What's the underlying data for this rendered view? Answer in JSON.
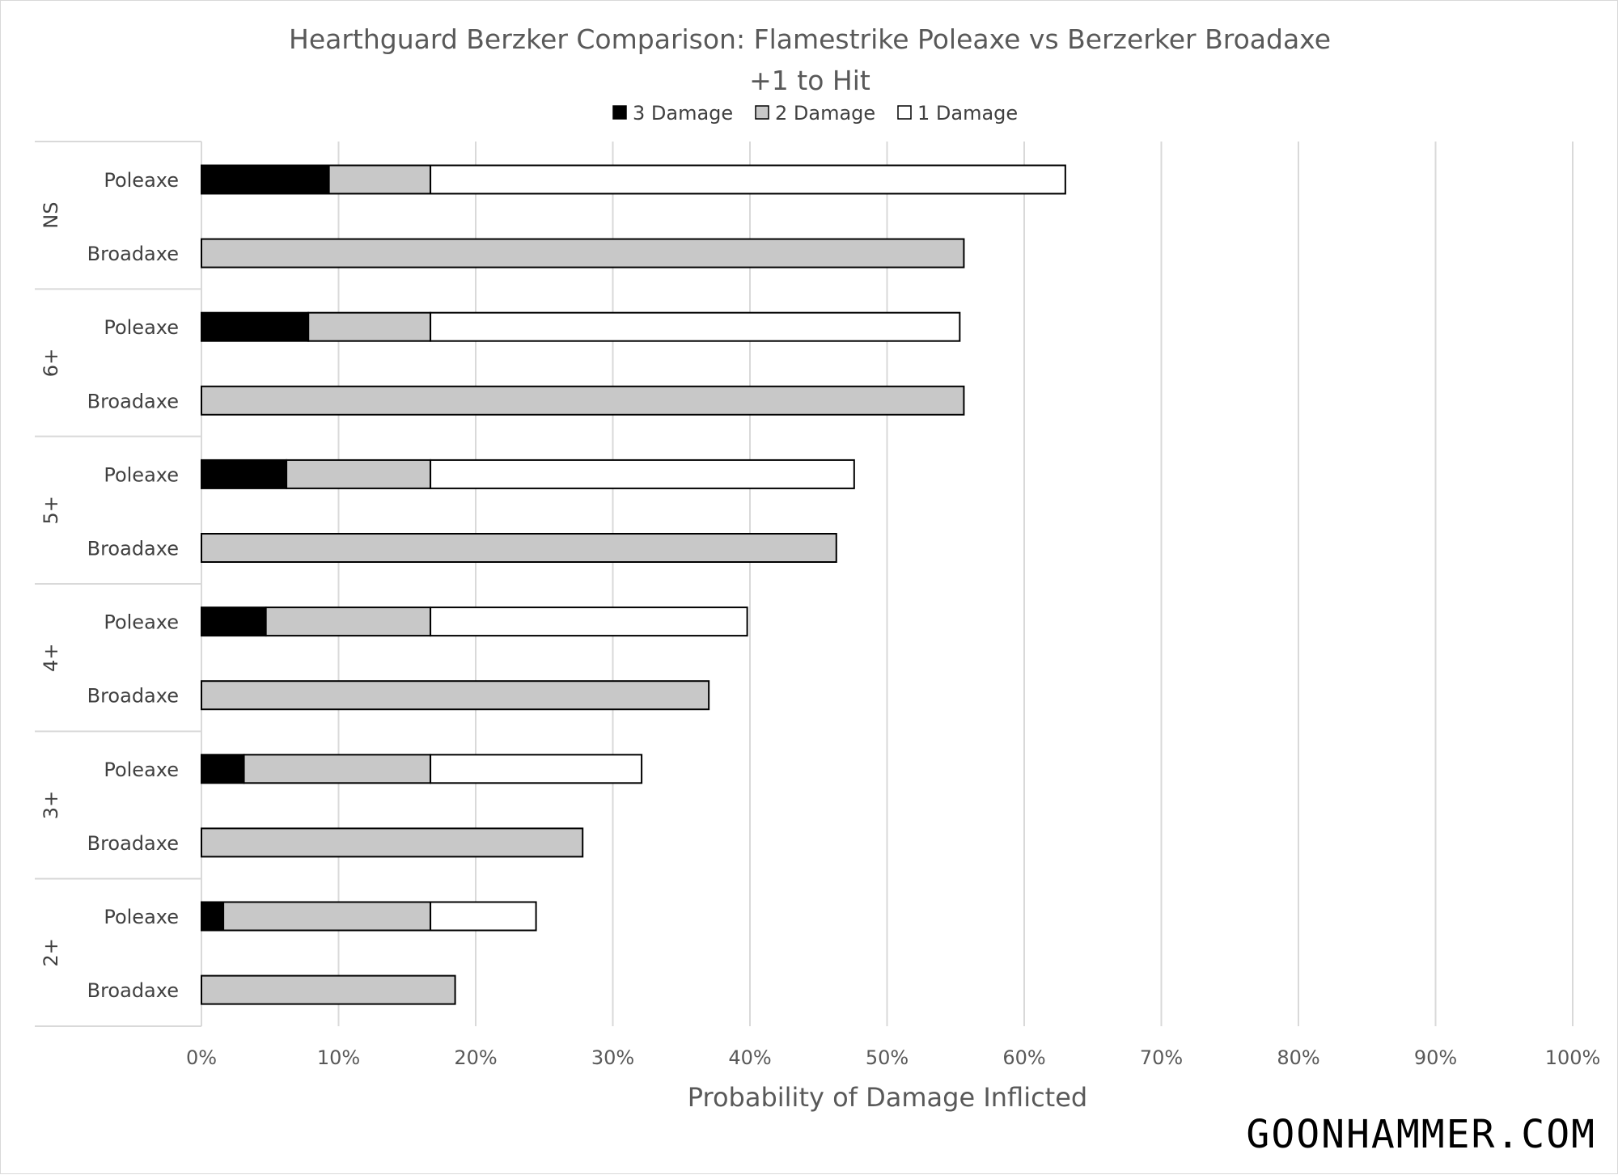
{
  "chart_data": {
    "type": "bar",
    "orientation": "horizontal",
    "stacked": true,
    "title": "Hearthguard Berzker Comparison: Flamestrike Poleaxe vs Berzerker Broadaxe",
    "subtitle": "+1 to Hit",
    "xlabel": "Probability of Damage Inflicted",
    "ylabel": "",
    "xlim": [
      0,
      100
    ],
    "x_ticks": [
      "0%",
      "10%",
      "20%",
      "30%",
      "40%",
      "50%",
      "60%",
      "70%",
      "80%",
      "90%",
      "100%"
    ],
    "legend_position": "top",
    "grid": "vertical",
    "series": [
      {
        "name": "3 Damage",
        "color": "#000000"
      },
      {
        "name": "2 Damage",
        "color": "#c8c8c8"
      },
      {
        "name": "1 Damage",
        "color": "#ffffff"
      }
    ],
    "groups": [
      {
        "label": "NS",
        "bars": [
          {
            "label": "Poleaxe",
            "values": [
              9.3,
              7.4,
              46.3
            ]
          },
          {
            "label": "Broadaxe",
            "values": [
              0,
              55.6,
              0
            ]
          }
        ]
      },
      {
        "label": "6+",
        "bars": [
          {
            "label": "Poleaxe",
            "values": [
              7.8,
              8.9,
              38.6
            ]
          },
          {
            "label": "Broadaxe",
            "values": [
              0,
              55.6,
              0
            ]
          }
        ]
      },
      {
        "label": "5+",
        "bars": [
          {
            "label": "Poleaxe",
            "values": [
              6.2,
              10.5,
              30.9
            ]
          },
          {
            "label": "Broadaxe",
            "values": [
              0,
              46.3,
              0
            ]
          }
        ]
      },
      {
        "label": "4+",
        "bars": [
          {
            "label": "Poleaxe",
            "values": [
              4.7,
              12.0,
              23.1
            ]
          },
          {
            "label": "Broadaxe",
            "values": [
              0,
              37.0,
              0
            ]
          }
        ]
      },
      {
        "label": "3+",
        "bars": [
          {
            "label": "Poleaxe",
            "values": [
              3.1,
              13.6,
              15.4
            ]
          },
          {
            "label": "Broadaxe",
            "values": [
              0,
              27.8,
              0
            ]
          }
        ]
      },
      {
        "label": "2+",
        "bars": [
          {
            "label": "Poleaxe",
            "values": [
              1.6,
              15.1,
              7.7
            ]
          },
          {
            "label": "Broadaxe",
            "values": [
              0,
              18.5,
              0
            ]
          }
        ]
      }
    ]
  },
  "watermark": {
    "text": "GOONHAMMER.COM"
  }
}
